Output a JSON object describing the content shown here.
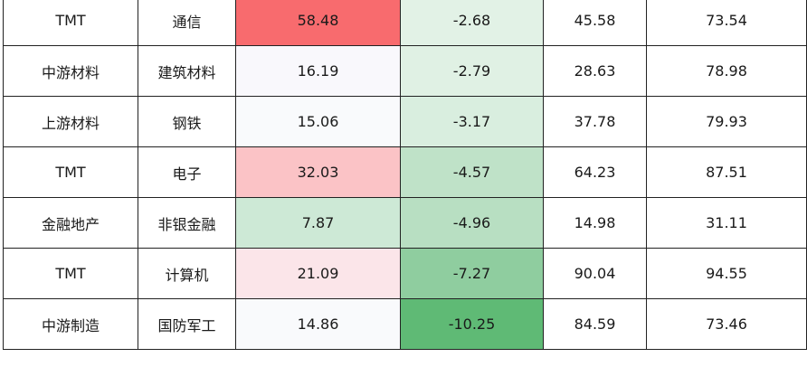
{
  "rows": [
    {
      "group": "TMT",
      "industry": "通信",
      "v1": "58.48",
      "v2": "-2.68",
      "v3": "45.58",
      "v4": "73.54",
      "v1_bg": "#f86b6e",
      "v2_bg": "#e2f2e6"
    },
    {
      "group": "中游材料",
      "industry": "建筑材料",
      "v1": "16.19",
      "v2": "-2.79",
      "v3": "28.63",
      "v4": "78.98",
      "v1_bg": "#f9f8fc",
      "v2_bg": "#e0f1e4"
    },
    {
      "group": "上游材料",
      "industry": "钢铁",
      "v1": "15.06",
      "v2": "-3.17",
      "v3": "37.78",
      "v4": "79.93",
      "v1_bg": "#f9fafc",
      "v2_bg": "#d9eedf"
    },
    {
      "group": "TMT",
      "industry": "电子",
      "v1": "32.03",
      "v2": "-4.57",
      "v3": "64.23",
      "v4": "87.51",
      "v1_bg": "#fbc3c6",
      "v2_bg": "#bfe2c8"
    },
    {
      "group": "金融地产",
      "industry": "非银金融",
      "v1": "7.87",
      "v2": "-4.96",
      "v3": "14.98",
      "v4": "31.11",
      "v1_bg": "#cde9d6",
      "v2_bg": "#b8dfc2"
    },
    {
      "group": "TMT",
      "industry": "计算机",
      "v1": "21.09",
      "v2": "-7.27",
      "v3": "90.04",
      "v4": "94.55",
      "v1_bg": "#fbe5e9",
      "v2_bg": "#8fcd9f"
    },
    {
      "group": "中游制造",
      "industry": "国防军工",
      "v1": "14.86",
      "v2": "-10.25",
      "v3": "84.59",
      "v4": "73.46",
      "v1_bg": "#f9fafc",
      "v2_bg": "#5fba75"
    }
  ]
}
